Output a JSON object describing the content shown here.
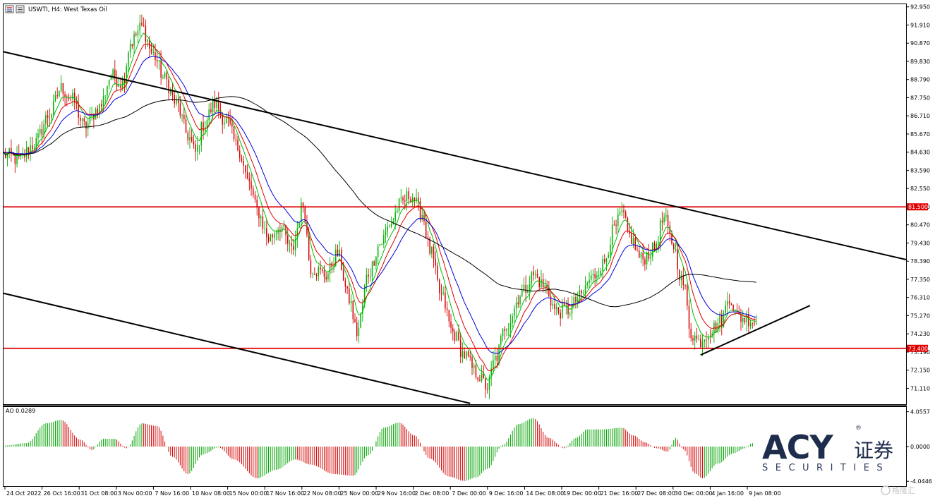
{
  "header": {
    "title": "USWTI, H4: West Texas Oil"
  },
  "indicator": {
    "label": "AO 0.0289"
  },
  "chart_data": {
    "type": "candlestick",
    "symbol": "USWTI",
    "timeframe": "H4",
    "title": "USWTI, H4: West Texas Oil",
    "y_axis": {
      "min": 70.2,
      "max": 93.1,
      "ticks": [
        "92.950",
        "91.910",
        "90.870",
        "89.830",
        "88.790",
        "87.750",
        "86.710",
        "85.670",
        "84.630",
        "83.590",
        "82.550",
        "81.510",
        "80.470",
        "79.430",
        "78.390",
        "77.350",
        "76.310",
        "75.270",
        "74.230",
        "73.190",
        "72.150",
        "71.110"
      ]
    },
    "x_axis": {
      "ticks": [
        "24 Oct 2022",
        "26 Oct 16:00",
        "31 Oct 08:00",
        "3 Nov 00:00",
        "7 Nov 16:00",
        "10 Nov 08:00",
        "15 Nov 00:00",
        "17 Nov 16:00",
        "22 Nov 08:00",
        "25 Nov 00:00",
        "29 Nov 16:00",
        "2 Dec 08:00",
        "7 Dec 00:00",
        "9 Dec 16:00",
        "14 Dec 08:00",
        "19 Dec 00:00",
        "21 Dec 16:00",
        "27 Dec 08:00",
        "30 Dec 00:00",
        "4 Jan 16:00",
        "9 Jan 08:00"
      ]
    },
    "close_path": [
      [
        0,
        84.5
      ],
      [
        8,
        84.2
      ],
      [
        16,
        85.1
      ],
      [
        24,
        86.8
      ],
      [
        30,
        88.3
      ],
      [
        36,
        87.6
      ],
      [
        42,
        86.1
      ],
      [
        50,
        87.2
      ],
      [
        56,
        89.0
      ],
      [
        62,
        88.6
      ],
      [
        66,
        90.9
      ],
      [
        72,
        91.8
      ],
      [
        78,
        90.2
      ],
      [
        84,
        88.8
      ],
      [
        90,
        87.4
      ],
      [
        96,
        85.6
      ],
      [
        100,
        84.6
      ],
      [
        104,
        86.2
      ],
      [
        110,
        87.4
      ],
      [
        116,
        86.4
      ],
      [
        122,
        84.9
      ],
      [
        128,
        82.8
      ],
      [
        132,
        81.3
      ],
      [
        138,
        79.7
      ],
      [
        144,
        80.4
      ],
      [
        150,
        79.0
      ],
      [
        156,
        81.6
      ],
      [
        160,
        78.0
      ],
      [
        168,
        77.6
      ],
      [
        174,
        78.8
      ],
      [
        180,
        76.2
      ],
      [
        184,
        74.3
      ],
      [
        190,
        77.7
      ],
      [
        196,
        79.4
      ],
      [
        202,
        80.6
      ],
      [
        206,
        81.6
      ],
      [
        212,
        82.2
      ],
      [
        218,
        81.1
      ],
      [
        222,
        79.0
      ],
      [
        228,
        76.4
      ],
      [
        234,
        74.3
      ],
      [
        240,
        73.0
      ],
      [
        246,
        72.0
      ],
      [
        252,
        71.2
      ],
      [
        256,
        72.8
      ],
      [
        262,
        74.8
      ],
      [
        270,
        76.6
      ],
      [
        276,
        77.6
      ],
      [
        282,
        76.9
      ],
      [
        288,
        75.5
      ],
      [
        294,
        75.6
      ],
      [
        300,
        76.3
      ],
      [
        306,
        77.4
      ],
      [
        312,
        78.2
      ],
      [
        318,
        80.2
      ],
      [
        322,
        81.1
      ],
      [
        326,
        79.8
      ],
      [
        332,
        78.5
      ],
      [
        338,
        79.0
      ],
      [
        344,
        80.8
      ],
      [
        348,
        79.5
      ],
      [
        354,
        77.1
      ],
      [
        358,
        74.3
      ],
      [
        362,
        73.8
      ],
      [
        368,
        74.4
      ],
      [
        374,
        75.0
      ],
      [
        378,
        76.4
      ],
      [
        382,
        75.2
      ],
      [
        388,
        75.1
      ],
      [
        392,
        74.9
      ]
    ],
    "moving_averages": [
      {
        "color": "#00c000",
        "period_hint": "fast"
      },
      {
        "color": "#e00000",
        "period_hint": "medium"
      },
      {
        "color": "#0000d8",
        "period_hint": "slow"
      },
      {
        "color": "#000000",
        "period_hint": "long"
      }
    ],
    "horizontal_levels": [
      {
        "value": 81.5,
        "label": "81.500",
        "color": "#e00000"
      },
      {
        "value": 73.4,
        "label": "73.400",
        "color": "#e00000"
      }
    ],
    "trendlines": [
      {
        "name": "channel-top",
        "from": {
          "t": 0,
          "price": 90.38
        },
        "to": {
          "t": 470,
          "price": 78.48
        }
      },
      {
        "name": "channel-bottom",
        "from": {
          "t": 0,
          "price": 76.55
        },
        "to": {
          "t": 243,
          "price": 70.25
        }
      },
      {
        "name": "rising-support",
        "from": {
          "t": 363,
          "price": 73.02
        },
        "to": {
          "t": 420,
          "price": 75.85
        }
      }
    ],
    "ao": {
      "ticks": [
        "4.0557",
        "0.0000",
        "-4.0446"
      ],
      "min": -4.6,
      "max": 4.6,
      "curve": [
        [
          0,
          0.1
        ],
        [
          12,
          0.4
        ],
        [
          22,
          2.7
        ],
        [
          30,
          3.1
        ],
        [
          40,
          0.8
        ],
        [
          46,
          -0.4
        ],
        [
          52,
          0.9
        ],
        [
          58,
          0.9
        ],
        [
          64,
          -0.2
        ],
        [
          72,
          2.7
        ],
        [
          80,
          2.4
        ],
        [
          88,
          -1.2
        ],
        [
          96,
          -3.2
        ],
        [
          104,
          -0.9
        ],
        [
          112,
          -0.1
        ],
        [
          120,
          -1.5
        ],
        [
          132,
          -3.7
        ],
        [
          142,
          -2.7
        ],
        [
          152,
          -1.5
        ],
        [
          160,
          -2.1
        ],
        [
          172,
          -3.2
        ],
        [
          182,
          -3.4
        ],
        [
          190,
          -1.0
        ],
        [
          198,
          2.2
        ],
        [
          206,
          2.8
        ],
        [
          214,
          1.3
        ],
        [
          222,
          -1.4
        ],
        [
          232,
          -3.5
        ],
        [
          240,
          -4.0
        ],
        [
          246,
          -3.6
        ],
        [
          252,
          -2.6
        ],
        [
          260,
          0.2
        ],
        [
          268,
          2.6
        ],
        [
          276,
          3.3
        ],
        [
          284,
          1.0
        ],
        [
          292,
          -0.2
        ],
        [
          298,
          1.0
        ],
        [
          304,
          2.0
        ],
        [
          312,
          2.0
        ],
        [
          322,
          2.2
        ],
        [
          328,
          1.3
        ],
        [
          334,
          0.5
        ],
        [
          340,
          -0.2
        ],
        [
          346,
          -0.6
        ],
        [
          350,
          1.0
        ],
        [
          354,
          -0.3
        ],
        [
          360,
          -3.1
        ],
        [
          364,
          -3.7
        ],
        [
          372,
          -2.0
        ],
        [
          380,
          -0.8
        ],
        [
          386,
          -0.2
        ],
        [
          390,
          0.4
        ]
      ]
    }
  },
  "logo": {
    "brand": "ACY",
    "suffix": "证券",
    "tagline": "SECURITIES",
    "registered": "®"
  },
  "watermark": {
    "text": "格隆汇"
  }
}
